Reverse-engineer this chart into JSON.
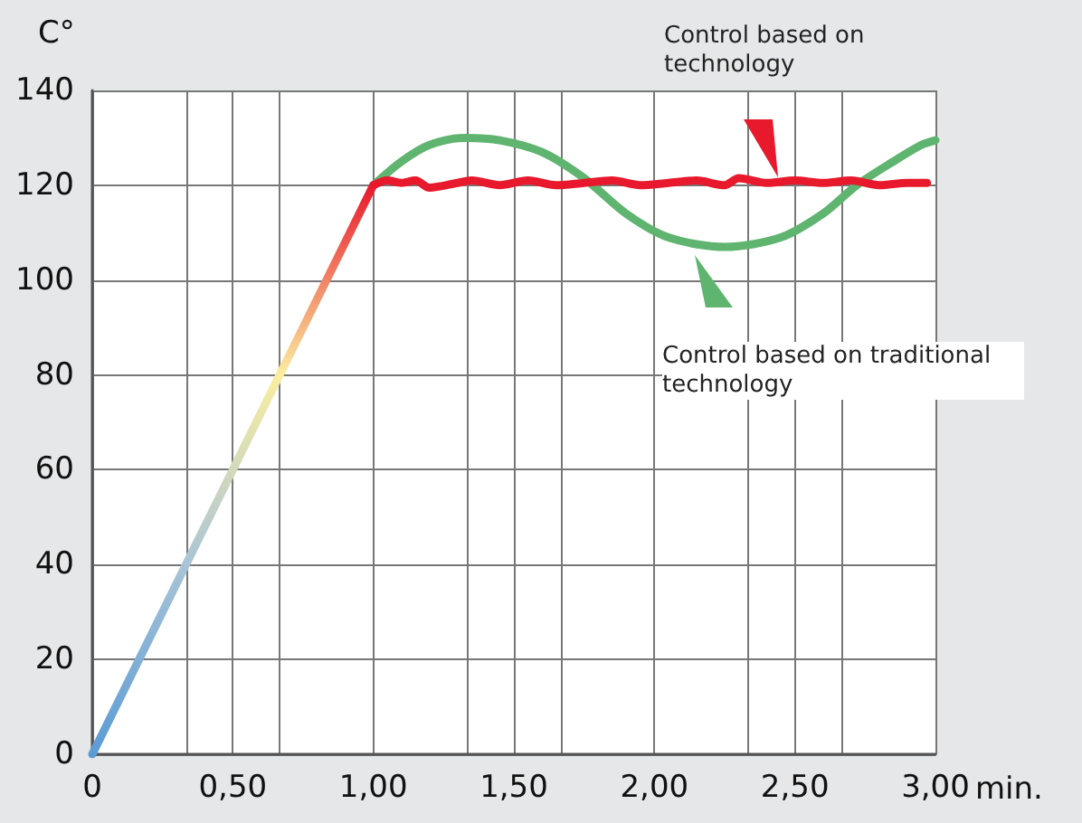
{
  "chart_data": {
    "type": "line",
    "xlabel": "min.",
    "ylabel": "C°",
    "xlim": [
      0,
      3
    ],
    "ylim": [
      0,
      140
    ],
    "xticks": [
      0,
      {
        "value": 0.3333,
        "label": null
      },
      {
        "value": 0.5,
        "label": "0,50"
      },
      {
        "value": 0.6667,
        "label": null
      },
      {
        "value": 1,
        "label": "1,00"
      },
      {
        "value": 1.3333,
        "label": null
      },
      {
        "value": 1.5,
        "label": "1,50"
      },
      {
        "value": 1.6667,
        "label": null
      },
      {
        "value": 2,
        "label": "2,00"
      },
      {
        "value": 2.3333,
        "label": null
      },
      {
        "value": 2.5,
        "label": "2,50"
      },
      {
        "value": 2.6667,
        "label": null
      },
      {
        "value": 3,
        "label": "3,00"
      }
    ],
    "yticks": [
      0,
      20,
      40,
      60,
      80,
      100,
      120,
      140
    ],
    "grid": true,
    "marker": "none",
    "line_style": "solid",
    "series": [
      {
        "x": [
          0,
          0.3333,
          0.6667,
          1
        ],
        "values": [
          0,
          40,
          80,
          120
        ],
        "colors": [
          "#5b9bd5",
          "#a9c4d6",
          "#fbeea0",
          "#e8192c"
        ]
      },
      {
        "color": "#5fb46f",
        "x": [
          1,
          1.1,
          1.2,
          1.33,
          1.45,
          1.6,
          1.75,
          1.9,
          2.05,
          2.25,
          2.45,
          2.6,
          2.72,
          2.85,
          2.95,
          3
        ],
        "values": [
          120,
          125,
          128.5,
          130,
          129.5,
          127,
          121.5,
          114,
          109,
          107,
          109,
          114,
          120,
          125,
          128.5,
          129.5
        ]
      },
      {
        "color": "#e8192c",
        "x": [
          1,
          1.05,
          1.1,
          1.15,
          1.2,
          1.3,
          1.35,
          1.45,
          1.55,
          1.65,
          1.75,
          1.85,
          1.95,
          2.05,
          2.15,
          2.25,
          2.3,
          2.4,
          2.5,
          2.6,
          2.7,
          2.8,
          2.9,
          2.97
        ],
        "values": [
          120,
          121,
          120.5,
          121,
          119.5,
          120.5,
          121,
          120,
          121,
          120,
          120.5,
          121,
          120,
          120.5,
          121,
          120,
          121.5,
          120.5,
          121,
          120.5,
          121,
          120,
          120.5,
          120.5
        ]
      }
    ],
    "annotations": [
      "Control based on technology",
      "Control based on traditional technology"
    ]
  }
}
